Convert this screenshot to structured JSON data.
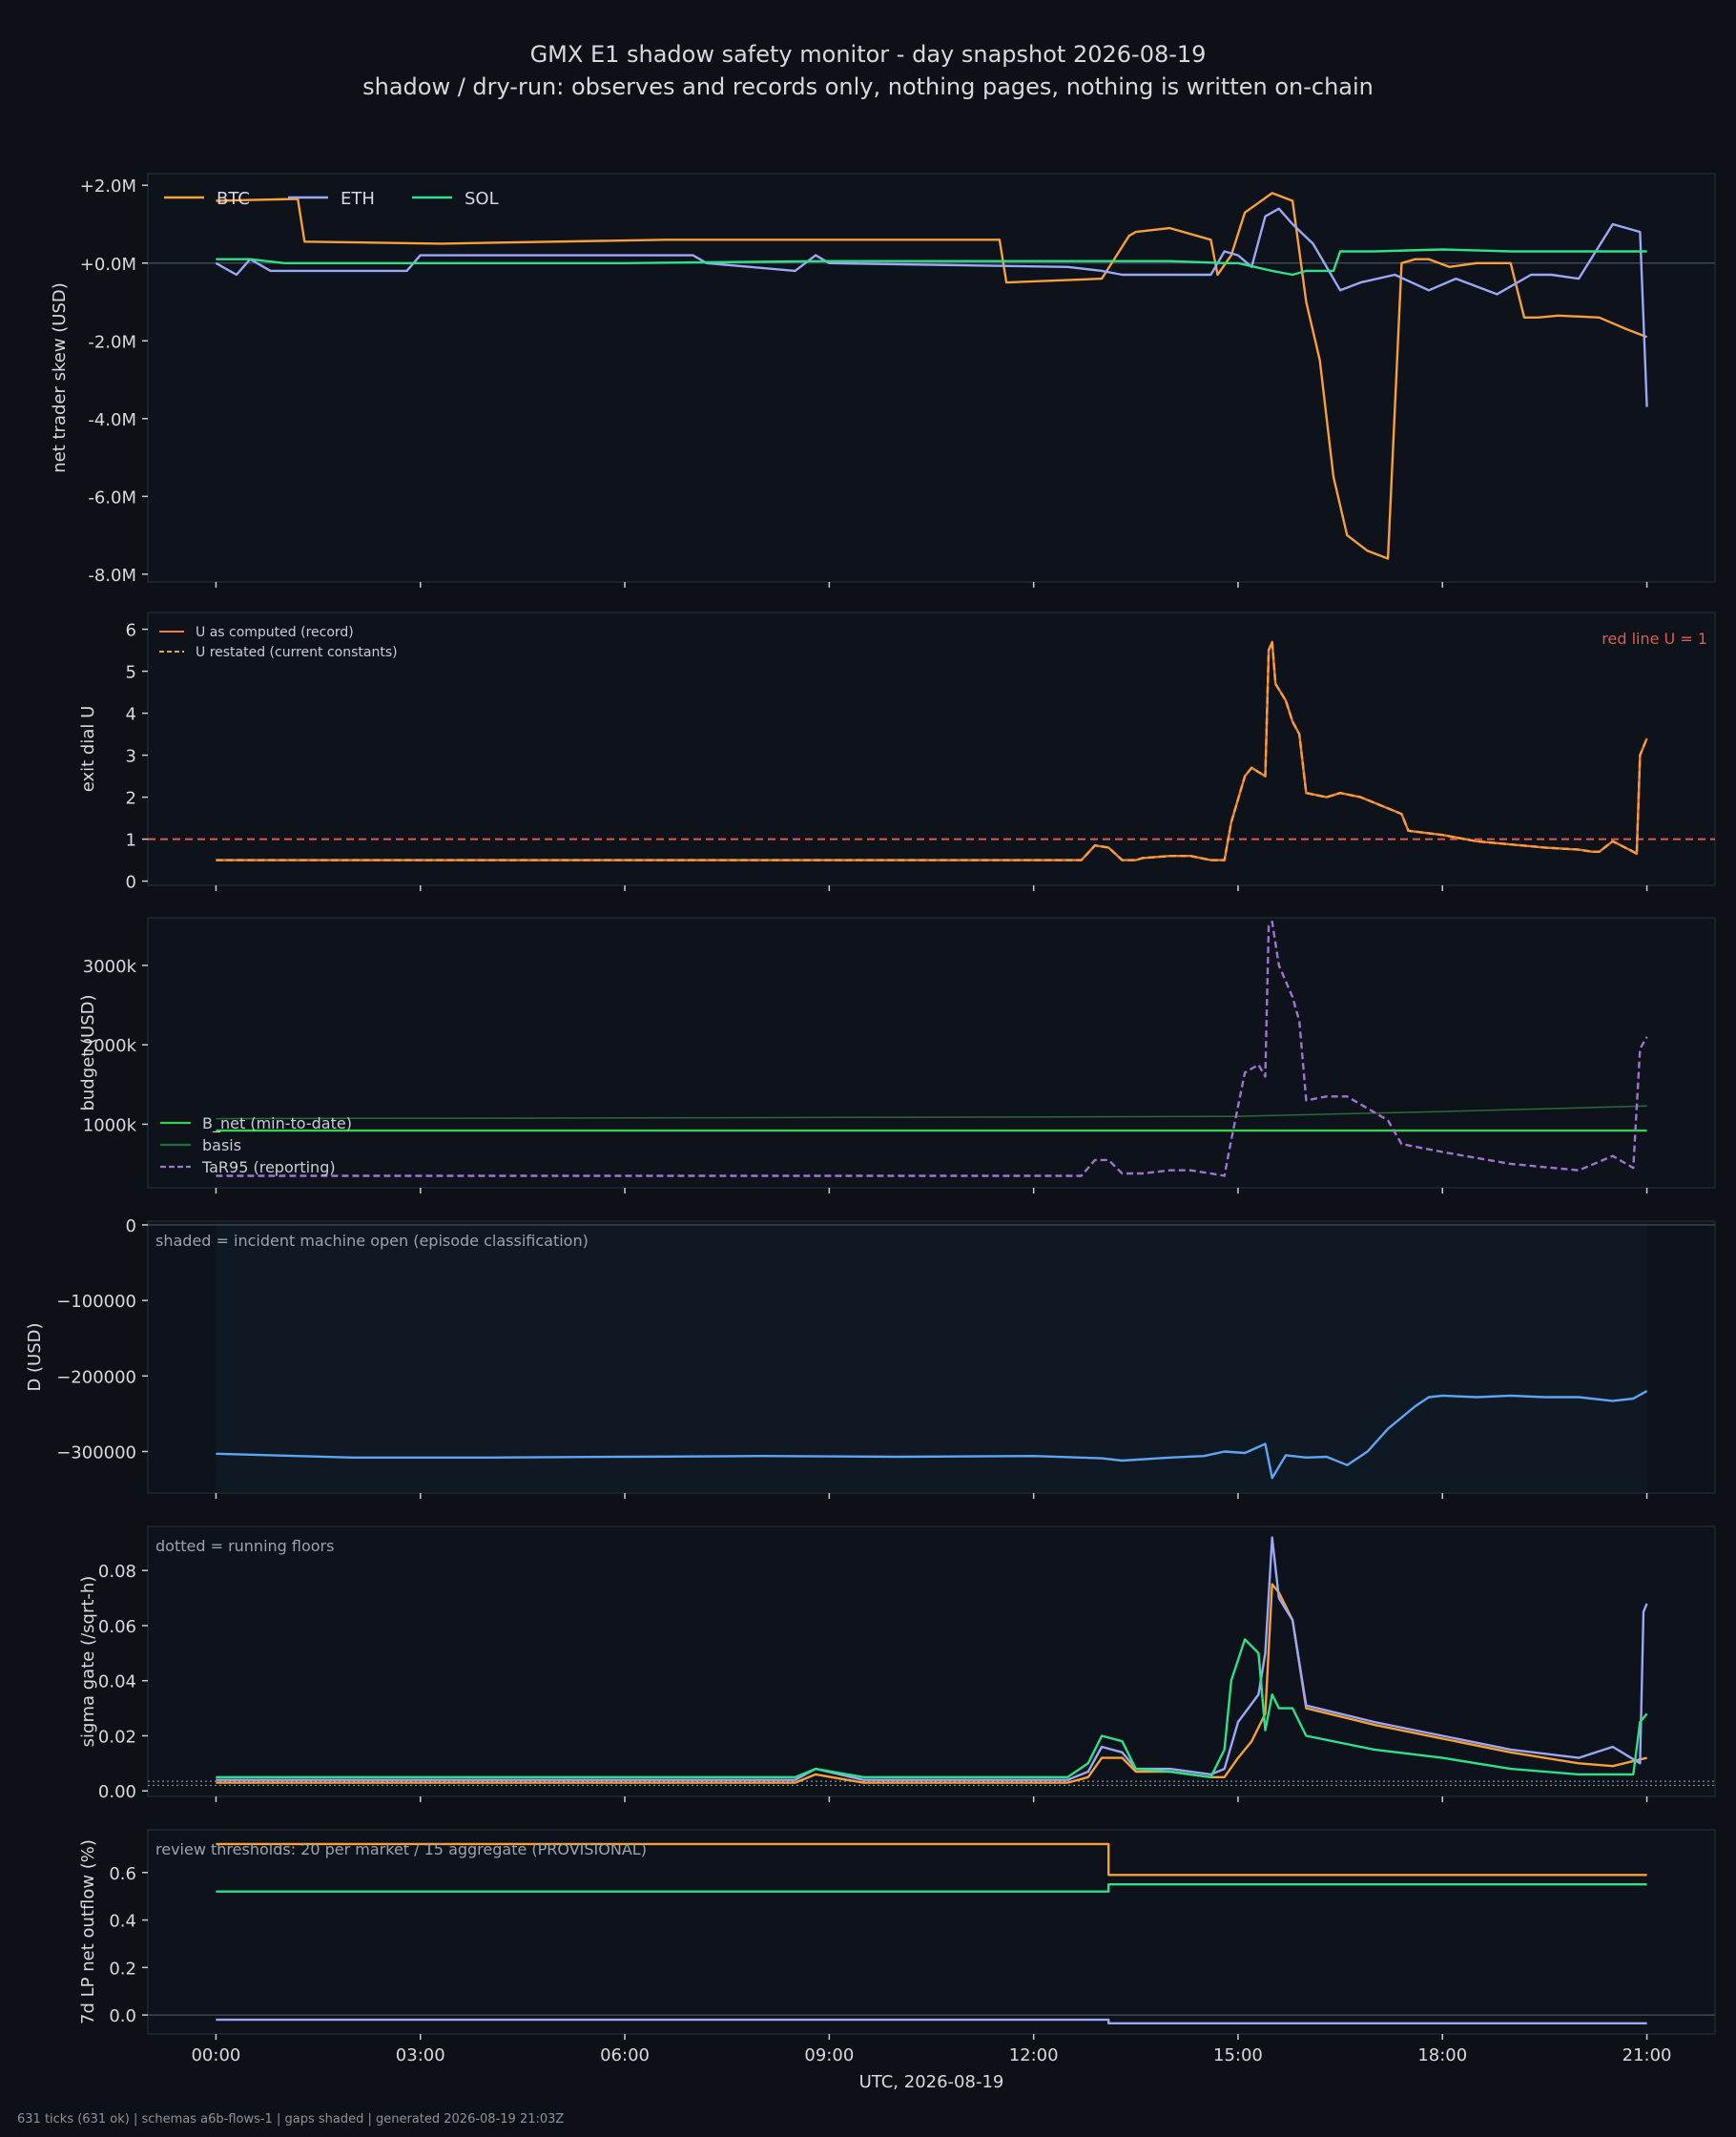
{
  "title": "GMX E1 shadow safety monitor - day snapshot 2026-08-19",
  "subtitle": "shadow / dry-run: observes and records only, nothing pages, nothing is written on-chain",
  "footer": "631 ticks (631 ok) | schemas a6b-flows-1 | gaps shaded | generated 2026-08-19 21:03Z",
  "colors": {
    "background": "#0d1117",
    "panel": "#0e121a",
    "btc": "#f5a03a",
    "eth": "#9aa8f5",
    "sol": "#2ee08a",
    "red": "#e05a4e",
    "u_computed": "#f07f3a",
    "b_net": "#3ccf4e",
    "basis": "#2b6b3a",
    "tar95": "#9f74d1",
    "d_line": "#5fa6f2",
    "shade": "#0f1923"
  },
  "chart_data": [
    {
      "type": "line",
      "ylabel": "net trader skew (USD)",
      "ylim": [
        -8.2,
        2.3
      ],
      "yticks": [
        2,
        0,
        -2,
        -4,
        -6,
        -8
      ],
      "ytick_labels": [
        "+2.0M",
        "+0.0M",
        "-2.0M",
        "-4.0M",
        "-6.0M",
        "-8.0M"
      ],
      "legend": [
        "BTC",
        "ETH",
        "SOL"
      ],
      "legend_position": "top-left",
      "zero_line": true,
      "series": [
        {
          "name": "BTC",
          "color_key": "btc",
          "x": [
            0,
            1.2,
            1.3,
            3.3,
            6.6,
            11.5,
            11.6,
            13.0,
            13.4,
            13.5,
            14.0,
            14.6,
            14.7,
            14.9,
            15.1,
            15.5,
            15.8,
            16.0,
            16.2,
            16.4,
            16.6,
            16.9,
            17.2,
            17.4,
            17.6,
            17.8,
            18.1,
            18.5,
            19.0,
            19.2,
            19.4,
            19.7,
            20.3,
            20.7,
            21.0
          ],
          "y": [
            1.6,
            1.65,
            0.55,
            0.5,
            0.6,
            0.6,
            -0.5,
            -0.4,
            0.7,
            0.8,
            0.9,
            0.6,
            -0.3,
            0.2,
            1.3,
            1.8,
            1.6,
            -1.0,
            -2.5,
            -5.5,
            -7.0,
            -7.4,
            -7.6,
            0.0,
            0.1,
            0.1,
            -0.1,
            0.0,
            0.0,
            -1.4,
            -1.4,
            -1.35,
            -1.4,
            -1.7,
            -1.9
          ]
        },
        {
          "name": "ETH",
          "color_key": "eth",
          "x": [
            0,
            0.3,
            0.5,
            0.8,
            2.8,
            3.0,
            5.0,
            7.0,
            7.2,
            8.5,
            8.8,
            9.0,
            12.5,
            13.0,
            13.3,
            13.5,
            14.6,
            14.8,
            15.0,
            15.2,
            15.4,
            15.6,
            15.8,
            16.1,
            16.5,
            16.8,
            17.3,
            17.8,
            18.2,
            18.8,
            19.3,
            19.6,
            20.0,
            20.5,
            20.9,
            21.0
          ],
          "y": [
            0.0,
            -0.3,
            0.1,
            -0.2,
            -0.2,
            0.2,
            0.2,
            0.2,
            0.0,
            -0.2,
            0.2,
            0.0,
            -0.1,
            -0.2,
            -0.3,
            -0.3,
            -0.3,
            0.3,
            0.2,
            -0.1,
            1.2,
            1.4,
            1.0,
            0.5,
            -0.7,
            -0.5,
            -0.3,
            -0.7,
            -0.4,
            -0.8,
            -0.3,
            -0.3,
            -0.4,
            1.0,
            0.8,
            -3.7
          ]
        },
        {
          "name": "SOL",
          "color_key": "sol",
          "x": [
            0,
            0.5,
            1.0,
            3.0,
            6.0,
            9.0,
            12.0,
            13.0,
            14.0,
            14.8,
            15.0,
            15.5,
            15.8,
            16.0,
            16.4,
            16.5,
            17.0,
            18.0,
            19.0,
            20.0,
            21.0
          ],
          "y": [
            0.1,
            0.1,
            0.0,
            0.0,
            0.0,
            0.05,
            0.05,
            0.05,
            0.05,
            0.0,
            0.0,
            -0.2,
            -0.3,
            -0.2,
            -0.2,
            0.3,
            0.3,
            0.35,
            0.3,
            0.3,
            0.3
          ]
        }
      ]
    },
    {
      "type": "line",
      "ylabel": "exit dial U",
      "ylim": [
        -0.1,
        6.4
      ],
      "yticks": [
        0,
        1,
        2,
        3,
        4,
        5,
        6
      ],
      "ytick_labels": [
        "0",
        "1",
        "2",
        "3",
        "4",
        "5",
        "6"
      ],
      "legend": [
        "U as computed (record)",
        "U restated (current constants)"
      ],
      "legend_position": "top-left",
      "annotation": "red line U = 1",
      "threshold": 1,
      "series": [
        {
          "name": "U as computed (record)",
          "color_key": "u_computed",
          "x": [
            0,
            12.7,
            12.9,
            13.1,
            13.3,
            13.5,
            13.6,
            14.0,
            14.3,
            14.6,
            14.8,
            14.9,
            15.1,
            15.2,
            15.4,
            15.45,
            15.5,
            15.55,
            15.7,
            15.8,
            15.9,
            16.0,
            16.3,
            16.5,
            16.8,
            17.1,
            17.4,
            17.5,
            18.0,
            18.5,
            19.5,
            20.0,
            20.2,
            20.3,
            20.5,
            20.8,
            20.85,
            20.9,
            21.0
          ],
          "y": [
            0.5,
            0.5,
            0.85,
            0.8,
            0.5,
            0.5,
            0.55,
            0.6,
            0.6,
            0.5,
            0.5,
            1.4,
            2.5,
            2.7,
            2.5,
            5.5,
            5.7,
            4.7,
            4.3,
            3.8,
            3.5,
            2.1,
            2.0,
            2.1,
            2.0,
            1.8,
            1.6,
            1.2,
            1.1,
            0.95,
            0.8,
            0.75,
            0.7,
            0.7,
            0.95,
            0.7,
            0.65,
            3.0,
            3.4
          ]
        },
        {
          "name": "U restated (current constants)",
          "color_key": "btc",
          "dashed": true,
          "x": [
            0,
            12.7,
            12.9,
            13.1,
            13.3,
            13.5,
            13.6,
            14.0,
            14.3,
            14.6,
            14.8,
            14.9,
            15.1,
            15.2,
            15.4,
            15.45,
            15.5,
            15.55,
            15.7,
            15.8,
            15.9,
            16.0,
            16.3,
            16.5,
            16.8,
            17.1,
            17.4,
            17.5,
            18.0,
            18.5,
            19.5,
            20.0,
            20.2,
            20.3,
            20.5,
            20.8,
            20.85,
            20.9,
            21.0
          ],
          "y": [
            0.5,
            0.5,
            0.85,
            0.8,
            0.5,
            0.5,
            0.55,
            0.6,
            0.6,
            0.5,
            0.5,
            1.4,
            2.5,
            2.7,
            2.5,
            5.5,
            5.7,
            4.7,
            4.3,
            3.8,
            3.5,
            2.1,
            2.0,
            2.1,
            2.0,
            1.8,
            1.6,
            1.2,
            1.1,
            0.95,
            0.8,
            0.75,
            0.7,
            0.7,
            0.95,
            0.7,
            0.65,
            3.0,
            3.4
          ]
        }
      ]
    },
    {
      "type": "line",
      "ylabel": "budget (USD)",
      "ylim": [
        200,
        3600
      ],
      "yticks": [
        1000,
        2000,
        3000
      ],
      "ytick_labels": [
        "1000k",
        "2000k",
        "3000k"
      ],
      "legend": [
        "B_net (min-to-date)",
        "basis",
        "TaR95 (reporting)"
      ],
      "legend_position": "bottom-left",
      "series": [
        {
          "name": "B_net (min-to-date)",
          "color_key": "b_net",
          "x": [
            0,
            21.0
          ],
          "y": [
            920,
            920
          ]
        },
        {
          "name": "basis",
          "color_key": "basis",
          "x": [
            0,
            6,
            12,
            15,
            18,
            21
          ],
          "y": [
            1070,
            1080,
            1090,
            1100,
            1160,
            1230
          ]
        },
        {
          "name": "TaR95 (reporting)",
          "color_key": "tar95",
          "dashed": true,
          "x": [
            0,
            12.7,
            12.9,
            13.1,
            13.3,
            13.6,
            14.0,
            14.3,
            14.6,
            14.8,
            14.9,
            15.1,
            15.3,
            15.4,
            15.45,
            15.5,
            15.6,
            15.8,
            15.9,
            16.0,
            16.3,
            16.6,
            17.2,
            17.4,
            18.0,
            19.0,
            20.0,
            20.5,
            20.8,
            20.9,
            21.0
          ],
          "y": [
            350,
            350,
            550,
            550,
            380,
            380,
            420,
            420,
            380,
            350,
            800,
            1650,
            1750,
            1600,
            3500,
            3550,
            3000,
            2600,
            2300,
            1300,
            1350,
            1350,
            1050,
            750,
            650,
            500,
            420,
            600,
            450,
            1950,
            2100
          ]
        }
      ]
    },
    {
      "type": "line",
      "ylabel": "D (USD)",
      "ylim": [
        -355000,
        5000
      ],
      "yticks": [
        0,
        -100000,
        -200000,
        -300000
      ],
      "ytick_labels": [
        "0",
        "−100000",
        "−200000",
        "−300000"
      ],
      "annotation": "shaded = incident machine open (episode classification)",
      "shaded_range": [
        0,
        21.0
      ],
      "series": [
        {
          "name": "D",
          "color_key": "d_line",
          "x": [
            0,
            2,
            4,
            6,
            8,
            10,
            12,
            13.0,
            13.3,
            14.0,
            14.5,
            14.8,
            15.1,
            15.4,
            15.5,
            15.7,
            16.0,
            16.3,
            16.6,
            16.9,
            17.2,
            17.6,
            17.8,
            18.0,
            18.5,
            19.0,
            19.5,
            20.0,
            20.5,
            20.8,
            21.0
          ],
          "y": [
            -303000,
            -308000,
            -308000,
            -307000,
            -306000,
            -307000,
            -306000,
            -309000,
            -312000,
            -308000,
            -306000,
            -300000,
            -302000,
            -290000,
            -335000,
            -305000,
            -308000,
            -307000,
            -318000,
            -300000,
            -270000,
            -240000,
            -228000,
            -226000,
            -228000,
            -226000,
            -228000,
            -228000,
            -233000,
            -230000,
            -220000
          ]
        }
      ]
    },
    {
      "type": "line",
      "ylabel": "sigma gate (/sqrt-h)",
      "ylim": [
        -0.002,
        0.096
      ],
      "yticks": [
        0.0,
        0.02,
        0.04,
        0.06,
        0.08
      ],
      "ytick_labels": [
        "0.00",
        "0.02",
        "0.04",
        "0.06",
        "0.08"
      ],
      "annotation": "dotted = running floors",
      "floor_lines": [
        0.002,
        0.0035
      ],
      "series": [
        {
          "name": "BTC",
          "color_key": "btc",
          "x": [
            0,
            1,
            2,
            4,
            6,
            8.5,
            8.8,
            9.5,
            12.5,
            12.8,
            13.0,
            13.3,
            13.5,
            14.0,
            14.6,
            14.8,
            15.0,
            15.2,
            15.4,
            15.5,
            15.6,
            15.8,
            16.0,
            17.0,
            18.0,
            19.0,
            20.0,
            20.5,
            21.0
          ],
          "y": [
            0.003,
            0.003,
            0.003,
            0.003,
            0.003,
            0.003,
            0.006,
            0.003,
            0.003,
            0.005,
            0.012,
            0.012,
            0.007,
            0.007,
            0.005,
            0.005,
            0.012,
            0.018,
            0.028,
            0.075,
            0.072,
            0.062,
            0.03,
            0.024,
            0.019,
            0.014,
            0.01,
            0.009,
            0.012
          ]
        },
        {
          "name": "ETH",
          "color_key": "eth",
          "x": [
            0,
            1,
            3,
            5,
            8.5,
            8.8,
            9.5,
            12.5,
            12.8,
            13.0,
            13.3,
            13.5,
            14.0,
            14.6,
            14.8,
            15.0,
            15.3,
            15.4,
            15.5,
            15.6,
            15.8,
            16.0,
            17.0,
            18.0,
            19.0,
            20.0,
            20.5,
            20.9,
            20.95,
            21.0
          ],
          "y": [
            0.004,
            0.004,
            0.004,
            0.004,
            0.004,
            0.008,
            0.004,
            0.004,
            0.007,
            0.016,
            0.014,
            0.008,
            0.008,
            0.006,
            0.008,
            0.025,
            0.035,
            0.05,
            0.092,
            0.07,
            0.062,
            0.031,
            0.025,
            0.02,
            0.015,
            0.012,
            0.016,
            0.01,
            0.065,
            0.068
          ]
        },
        {
          "name": "SOL",
          "color_key": "sol",
          "x": [
            0,
            1,
            3,
            5,
            8.5,
            8.8,
            9.5,
            12.5,
            12.8,
            13.0,
            13.3,
            13.5,
            14.0,
            14.6,
            14.8,
            14.9,
            15.1,
            15.3,
            15.4,
            15.5,
            15.6,
            15.8,
            16.0,
            17.0,
            18.0,
            19.0,
            20.0,
            20.8,
            20.9,
            21.0
          ],
          "y": [
            0.005,
            0.005,
            0.005,
            0.005,
            0.005,
            0.008,
            0.005,
            0.005,
            0.01,
            0.02,
            0.018,
            0.008,
            0.007,
            0.005,
            0.015,
            0.04,
            0.055,
            0.05,
            0.022,
            0.035,
            0.03,
            0.03,
            0.02,
            0.015,
            0.012,
            0.008,
            0.006,
            0.006,
            0.025,
            0.028
          ]
        }
      ]
    },
    {
      "type": "line",
      "ylabel": "7d LP net outflow (%)",
      "xlabel": "UTC, 2026-08-19",
      "ylim": [
        -0.08,
        0.78
      ],
      "yticks": [
        0.0,
        0.2,
        0.4,
        0.6
      ],
      "ytick_labels": [
        "0.0",
        "0.2",
        "0.4",
        "0.6"
      ],
      "annotation": "review thresholds: 20 per market / 15 aggregate (PROVISIONAL)",
      "zero_line": true,
      "series": [
        {
          "name": "BTC",
          "color_key": "btc",
          "step": true,
          "x": [
            0,
            13.1,
            13.1,
            21.0
          ],
          "y": [
            0.72,
            0.72,
            0.59,
            0.59
          ]
        },
        {
          "name": "SOL",
          "color_key": "sol",
          "step": true,
          "x": [
            0,
            13.1,
            13.1,
            21.0
          ],
          "y": [
            0.52,
            0.52,
            0.55,
            0.55
          ]
        },
        {
          "name": "ETH",
          "color_key": "eth",
          "step": true,
          "x": [
            0,
            13.1,
            13.1,
            21.0
          ],
          "y": [
            -0.02,
            -0.02,
            -0.035,
            -0.035
          ]
        }
      ]
    }
  ],
  "x_axis": {
    "xlim": [
      -1,
      22
    ],
    "ticks": [
      0,
      3,
      6,
      9,
      12,
      15,
      18,
      21
    ],
    "tick_labels": [
      "00:00",
      "03:00",
      "06:00",
      "09:00",
      "12:00",
      "15:00",
      "18:00",
      "21:00"
    ]
  }
}
